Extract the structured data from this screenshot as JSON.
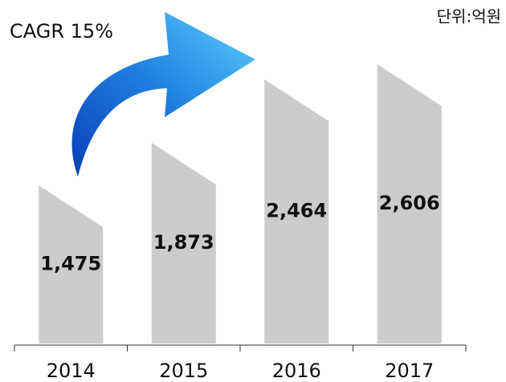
{
  "chart_data": {
    "type": "bar",
    "annotations": [
      "CAGR 15%",
      "단위:억원"
    ],
    "categories": [
      "2014",
      "2015",
      "2016",
      "2017"
    ],
    "values": [
      1475,
      1873,
      2464,
      2606
    ],
    "value_labels": [
      "1,475",
      "1,873",
      "2,464",
      "2,606"
    ],
    "color": "#cccccc"
  }
}
